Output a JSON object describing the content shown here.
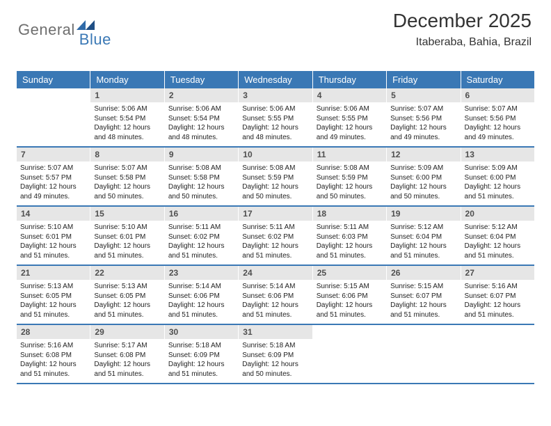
{
  "logo": {
    "text1": "General",
    "text2": "Blue"
  },
  "title": "December 2025",
  "location": "Itaberaba, Bahia, Brazil",
  "colors": {
    "header_bg": "#3a78b5",
    "header_text": "#ffffff",
    "daynum_bg": "#e6e6e6",
    "daynum_text": "#4f4f4f",
    "body_text": "#1a1a1a",
    "rule": "#3a78b5",
    "page_bg": "#ffffff"
  },
  "days_of_week": [
    "Sunday",
    "Monday",
    "Tuesday",
    "Wednesday",
    "Thursday",
    "Friday",
    "Saturday"
  ],
  "start_offset": 1,
  "days": [
    {
      "n": 1,
      "sunrise": "5:06 AM",
      "sunset": "5:54 PM",
      "daylight": "12 hours and 48 minutes."
    },
    {
      "n": 2,
      "sunrise": "5:06 AM",
      "sunset": "5:54 PM",
      "daylight": "12 hours and 48 minutes."
    },
    {
      "n": 3,
      "sunrise": "5:06 AM",
      "sunset": "5:55 PM",
      "daylight": "12 hours and 48 minutes."
    },
    {
      "n": 4,
      "sunrise": "5:06 AM",
      "sunset": "5:55 PM",
      "daylight": "12 hours and 49 minutes."
    },
    {
      "n": 5,
      "sunrise": "5:07 AM",
      "sunset": "5:56 PM",
      "daylight": "12 hours and 49 minutes."
    },
    {
      "n": 6,
      "sunrise": "5:07 AM",
      "sunset": "5:56 PM",
      "daylight": "12 hours and 49 minutes."
    },
    {
      "n": 7,
      "sunrise": "5:07 AM",
      "sunset": "5:57 PM",
      "daylight": "12 hours and 49 minutes."
    },
    {
      "n": 8,
      "sunrise": "5:07 AM",
      "sunset": "5:58 PM",
      "daylight": "12 hours and 50 minutes."
    },
    {
      "n": 9,
      "sunrise": "5:08 AM",
      "sunset": "5:58 PM",
      "daylight": "12 hours and 50 minutes."
    },
    {
      "n": 10,
      "sunrise": "5:08 AM",
      "sunset": "5:59 PM",
      "daylight": "12 hours and 50 minutes."
    },
    {
      "n": 11,
      "sunrise": "5:08 AM",
      "sunset": "5:59 PM",
      "daylight": "12 hours and 50 minutes."
    },
    {
      "n": 12,
      "sunrise": "5:09 AM",
      "sunset": "6:00 PM",
      "daylight": "12 hours and 50 minutes."
    },
    {
      "n": 13,
      "sunrise": "5:09 AM",
      "sunset": "6:00 PM",
      "daylight": "12 hours and 51 minutes."
    },
    {
      "n": 14,
      "sunrise": "5:10 AM",
      "sunset": "6:01 PM",
      "daylight": "12 hours and 51 minutes."
    },
    {
      "n": 15,
      "sunrise": "5:10 AM",
      "sunset": "6:01 PM",
      "daylight": "12 hours and 51 minutes."
    },
    {
      "n": 16,
      "sunrise": "5:11 AM",
      "sunset": "6:02 PM",
      "daylight": "12 hours and 51 minutes."
    },
    {
      "n": 17,
      "sunrise": "5:11 AM",
      "sunset": "6:02 PM",
      "daylight": "12 hours and 51 minutes."
    },
    {
      "n": 18,
      "sunrise": "5:11 AM",
      "sunset": "6:03 PM",
      "daylight": "12 hours and 51 minutes."
    },
    {
      "n": 19,
      "sunrise": "5:12 AM",
      "sunset": "6:04 PM",
      "daylight": "12 hours and 51 minutes."
    },
    {
      "n": 20,
      "sunrise": "5:12 AM",
      "sunset": "6:04 PM",
      "daylight": "12 hours and 51 minutes."
    },
    {
      "n": 21,
      "sunrise": "5:13 AM",
      "sunset": "6:05 PM",
      "daylight": "12 hours and 51 minutes."
    },
    {
      "n": 22,
      "sunrise": "5:13 AM",
      "sunset": "6:05 PM",
      "daylight": "12 hours and 51 minutes."
    },
    {
      "n": 23,
      "sunrise": "5:14 AM",
      "sunset": "6:06 PM",
      "daylight": "12 hours and 51 minutes."
    },
    {
      "n": 24,
      "sunrise": "5:14 AM",
      "sunset": "6:06 PM",
      "daylight": "12 hours and 51 minutes."
    },
    {
      "n": 25,
      "sunrise": "5:15 AM",
      "sunset": "6:06 PM",
      "daylight": "12 hours and 51 minutes."
    },
    {
      "n": 26,
      "sunrise": "5:15 AM",
      "sunset": "6:07 PM",
      "daylight": "12 hours and 51 minutes."
    },
    {
      "n": 27,
      "sunrise": "5:16 AM",
      "sunset": "6:07 PM",
      "daylight": "12 hours and 51 minutes."
    },
    {
      "n": 28,
      "sunrise": "5:16 AM",
      "sunset": "6:08 PM",
      "daylight": "12 hours and 51 minutes."
    },
    {
      "n": 29,
      "sunrise": "5:17 AM",
      "sunset": "6:08 PM",
      "daylight": "12 hours and 51 minutes."
    },
    {
      "n": 30,
      "sunrise": "5:18 AM",
      "sunset": "6:09 PM",
      "daylight": "12 hours and 51 minutes."
    },
    {
      "n": 31,
      "sunrise": "5:18 AM",
      "sunset": "6:09 PM",
      "daylight": "12 hours and 50 minutes."
    }
  ],
  "labels": {
    "sunrise": "Sunrise:",
    "sunset": "Sunset:",
    "daylight": "Daylight:"
  }
}
